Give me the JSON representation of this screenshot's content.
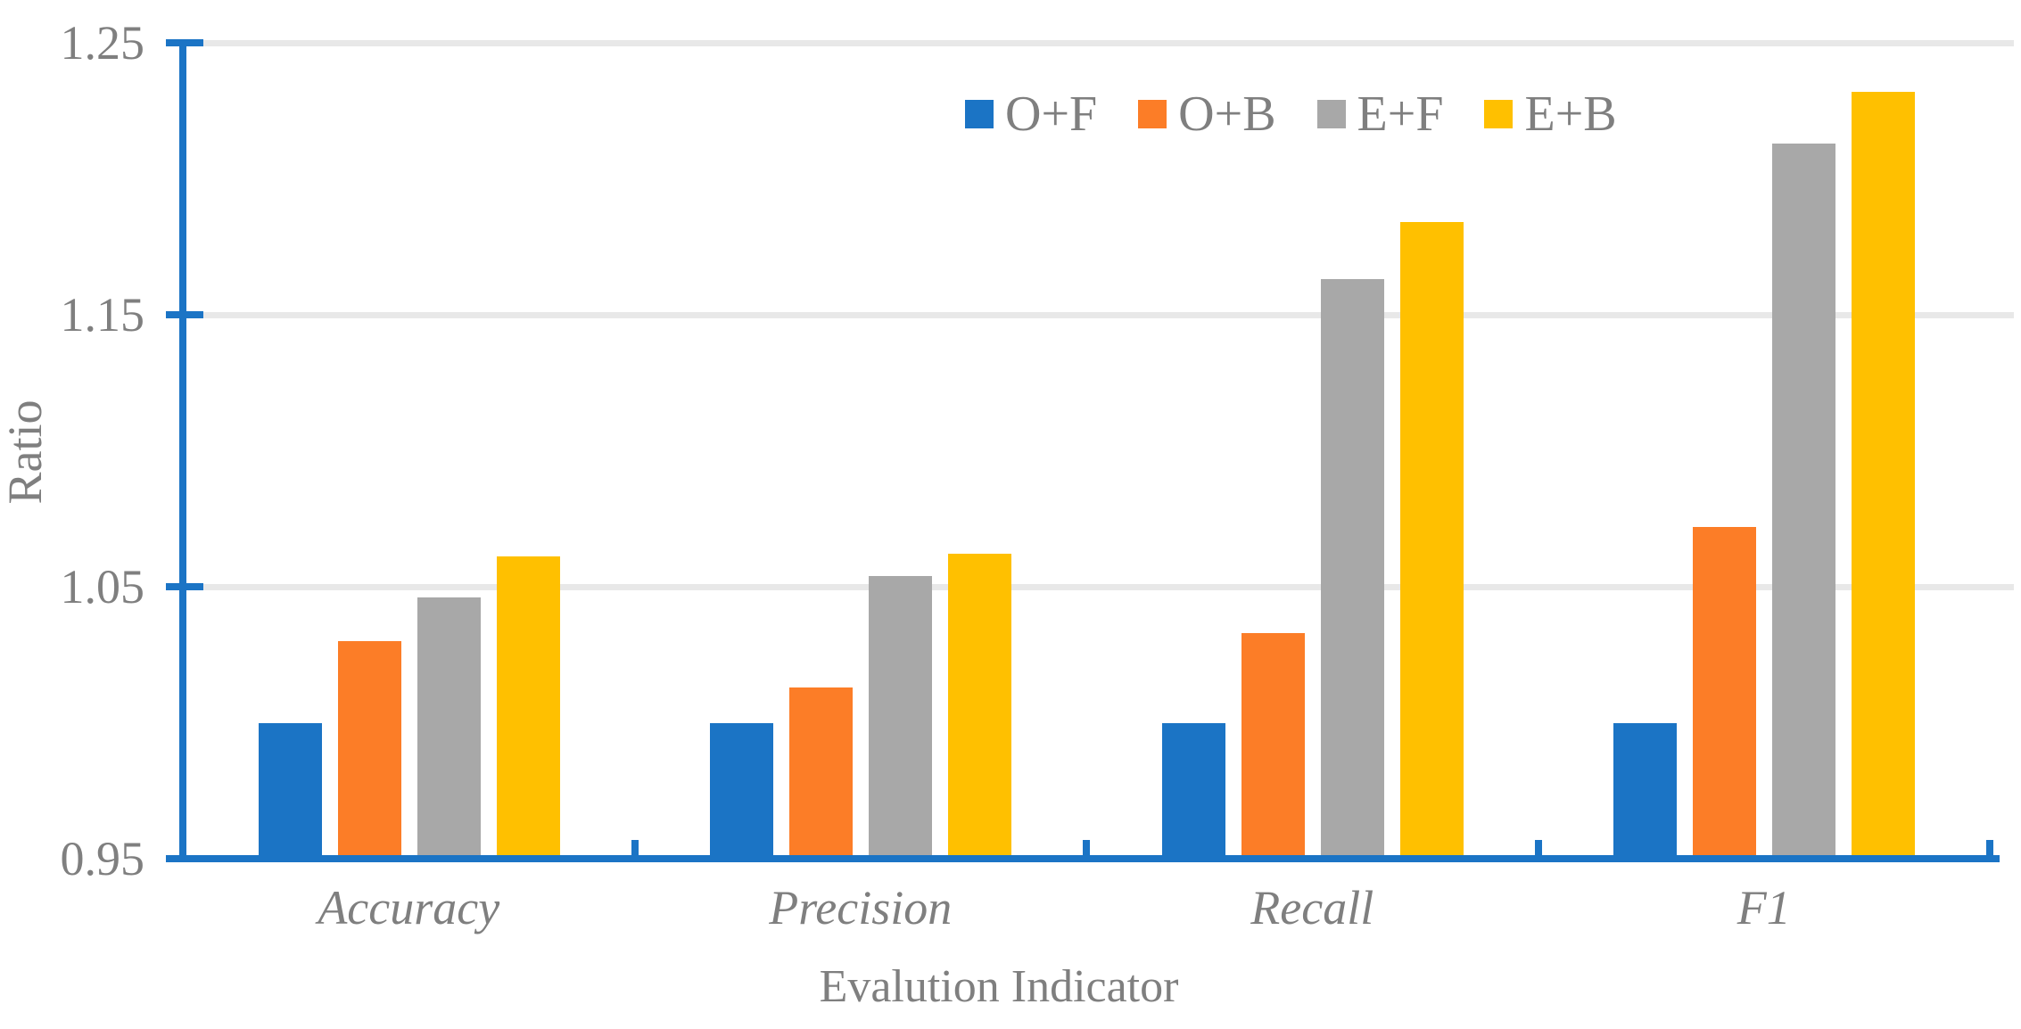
{
  "chart_data": {
    "type": "bar",
    "title": "",
    "xlabel": "Evalution Indicator",
    "ylabel": "Ratio",
    "categories": [
      "Accuracy",
      "Precision",
      "Recall",
      "F1"
    ],
    "series": [
      {
        "name": "O+F",
        "color": "#1b74c5",
        "values": [
          1.0,
          1.0,
          1.0,
          1.0
        ]
      },
      {
        "name": "O+B",
        "color": "#fc7d27",
        "values": [
          1.03,
          1.013,
          1.033,
          1.072
        ]
      },
      {
        "name": "E+F",
        "color": "#a8a8a8",
        "values": [
          1.046,
          1.054,
          1.163,
          1.213
        ]
      },
      {
        "name": "E+B",
        "color": "#ffc000",
        "values": [
          1.061,
          1.062,
          1.184,
          1.232
        ]
      }
    ],
    "ylim": [
      0.95,
      1.25
    ],
    "yticks": [
      0.95,
      1.05,
      1.15,
      1.25
    ],
    "ytick_labels": [
      "0.95",
      "1.05",
      "1.15",
      "1.25"
    ],
    "grid": true,
    "legend_position": "top-center-inside",
    "axis_color": "#1b74c5",
    "gridline_color": "#e8e8e8",
    "text_color": "#7f7f7f"
  }
}
